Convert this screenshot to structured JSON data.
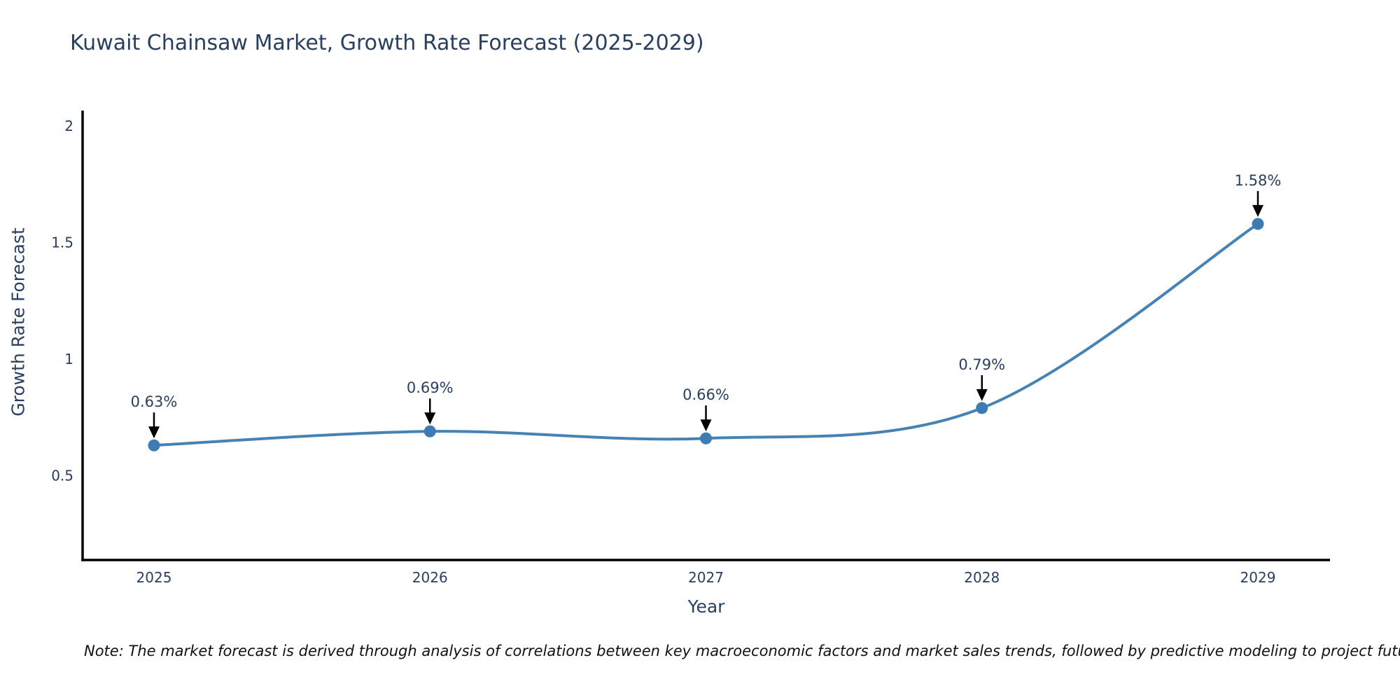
{
  "title": "Kuwait Chainsaw Market, Growth Rate Forecast (2025-2029)",
  "note": "Note: The market forecast is derived through analysis of correlations between key macroeconomic factors and market sales trends, followed by predictive modeling to project future sales",
  "chart_data": {
    "type": "line",
    "title": "Kuwait Chainsaw Market, Growth Rate Forecast (2025-2029)",
    "xlabel": "Year",
    "ylabel": "Growth Rate Forecast",
    "x": [
      2025,
      2026,
      2027,
      2028,
      2029
    ],
    "y": [
      0.63,
      0.69,
      0.66,
      0.79,
      1.58
    ],
    "point_labels": [
      "0.63%",
      "0.69%",
      "0.66%",
      "0.79%",
      "1.58%"
    ],
    "yticks": [
      0.5,
      1,
      1.5,
      2
    ],
    "xticks": [
      2025,
      2026,
      2027,
      2028,
      2029
    ],
    "ylim": [
      0.14,
      2.07
    ],
    "xlim": [
      2024.74,
      2029.26
    ],
    "grid": false,
    "legend": "none",
    "line_shape": "spline",
    "annotation_style": "label above point with downward black arrow",
    "colors": {
      "line": "#4682b4",
      "marker": "#3d7cb2",
      "axis": "#000000",
      "text": "#2a3f5f",
      "arrow": "#000000",
      "note_text": "#111111"
    }
  }
}
